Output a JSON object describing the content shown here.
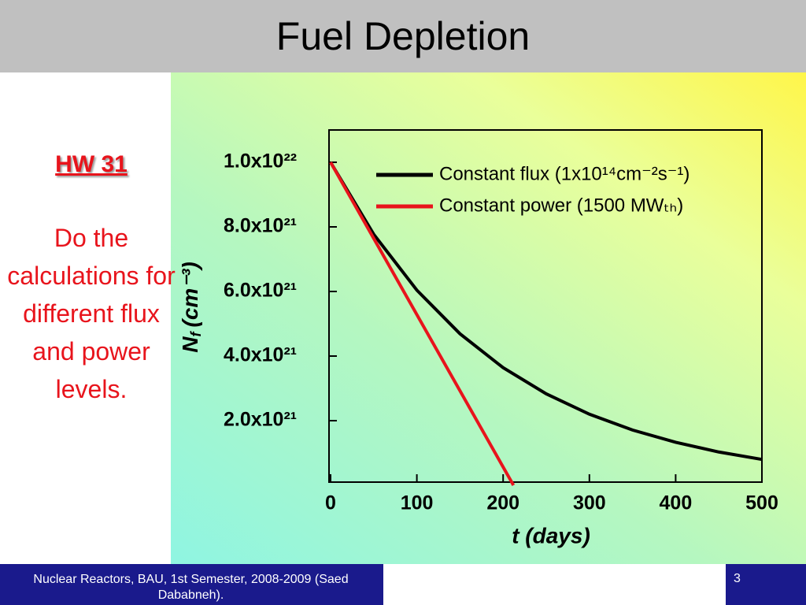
{
  "slide": {
    "title": "Fuel Depletion",
    "hw": "HW 31",
    "task": "Do the calculations for different flux and power levels.",
    "footer": "Nuclear Reactors, BAU, 1st Semester, 2008-2009 (Saed Dababneh).",
    "page": "3"
  },
  "chart_data": {
    "type": "line",
    "xlabel": "t (days)",
    "ylabel": {
      "symbol": "N",
      "subscript": "f",
      "unit": "(cm⁻³)"
    },
    "xlim": [
      0,
      500
    ],
    "xticks": [
      0,
      100,
      200,
      300,
      400,
      500
    ],
    "ylim": [
      0,
      1.1e+22
    ],
    "yticks": [
      {
        "value": 2e+21,
        "label": "2.0x10²¹"
      },
      {
        "value": 4e+21,
        "label": "4.0x10²¹"
      },
      {
        "value": 6e+21,
        "label": "6.0x10²¹"
      },
      {
        "value": 8e+21,
        "label": "8.0x10²¹"
      },
      {
        "value": 1e+22,
        "label": "1.0x10²²"
      }
    ],
    "series": [
      {
        "name": "Constant flux (1x10¹⁴cm⁻²s⁻¹)",
        "color": "#000000",
        "x": [
          0,
          50,
          100,
          150,
          200,
          250,
          300,
          350,
          400,
          450,
          500
        ],
        "values": [
          1e+22,
          7.77e+21,
          6.04e+21,
          4.69e+21,
          3.64e+21,
          2.83e+21,
          2.2e+21,
          1.71e+21,
          1.33e+21,
          1.03e+21,
          8e+20
        ]
      },
      {
        "name": "Constant power (1500 MWₜₕ)",
        "color": "#e8141c",
        "x": [
          0,
          212
        ],
        "values": [
          1e+22,
          0
        ]
      }
    ]
  }
}
